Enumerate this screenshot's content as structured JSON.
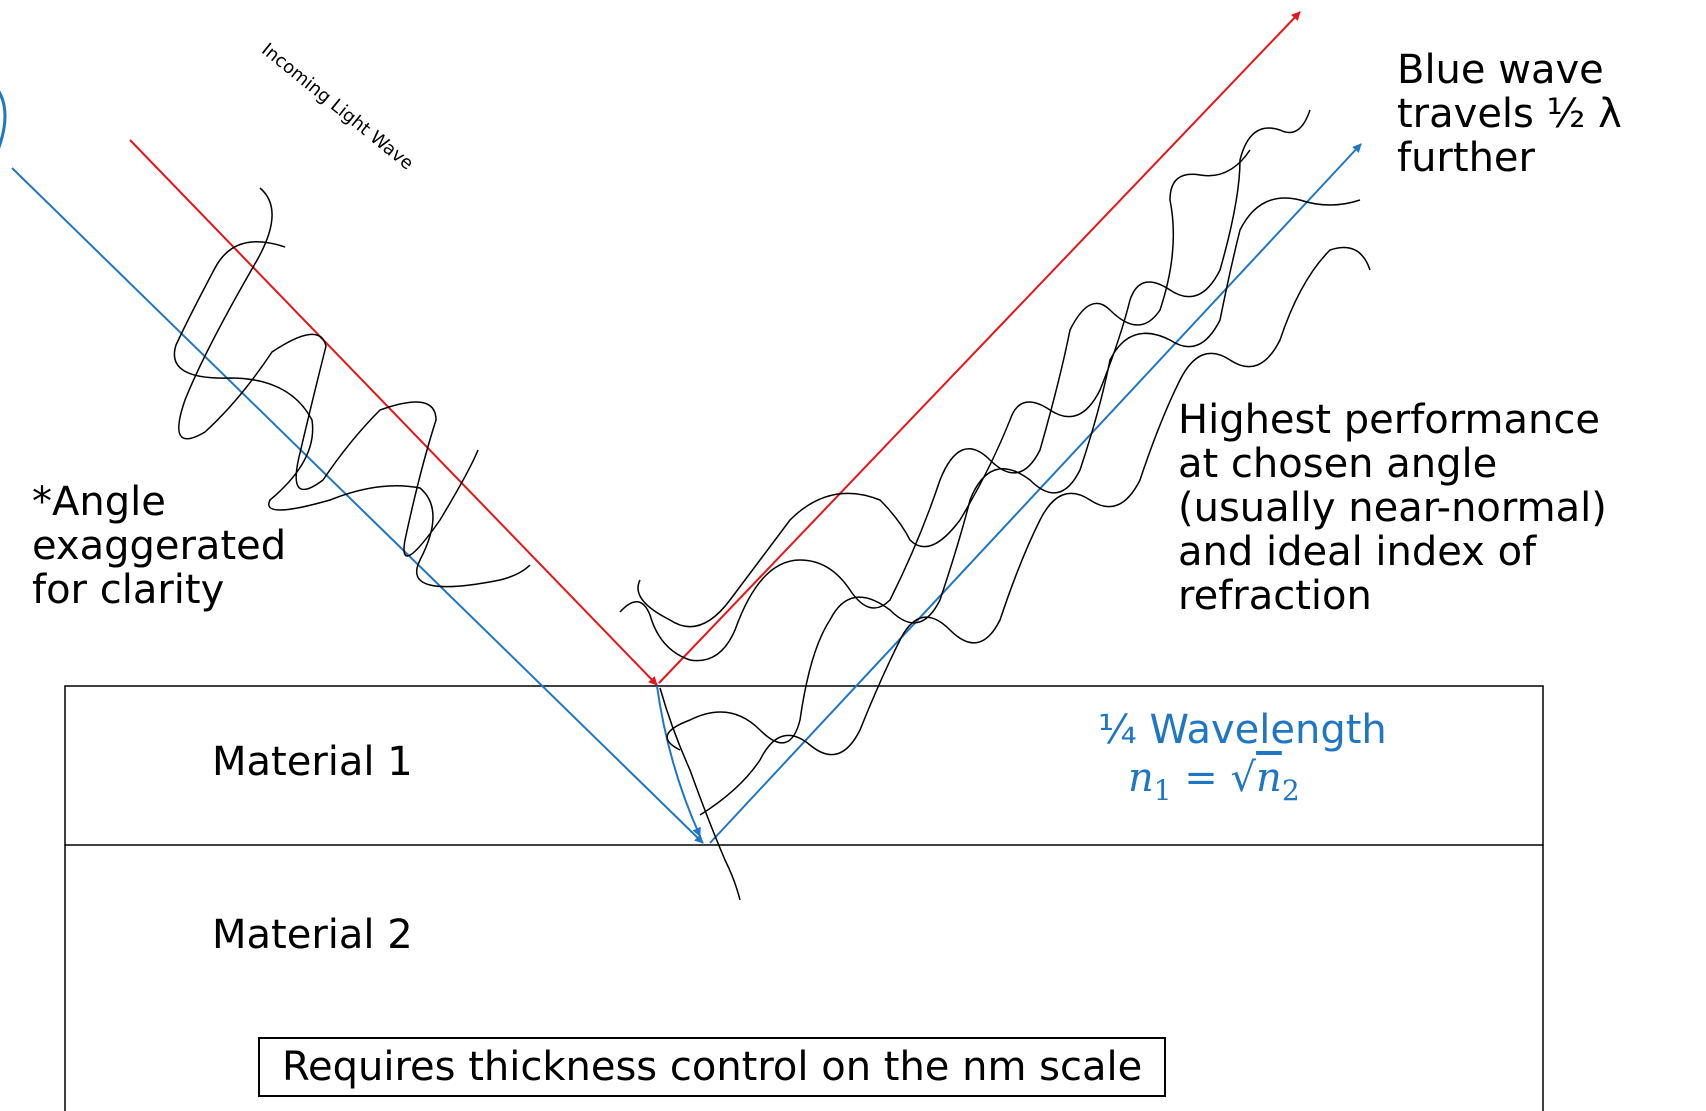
{
  "labels": {
    "incoming_wave": "Incoming Light Wave",
    "angle_note": [
      "*Angle",
      "exaggerated",
      "for clarity"
    ],
    "blue_wave_note": [
      "Blue wave",
      "travels ½ λ",
      "further"
    ],
    "performance_note": [
      "Highest performance",
      "at chosen angle",
      "(usually near-normal)",
      "and ideal index of",
      "refraction"
    ],
    "quarter_wavelength": "¼ Wavelength",
    "equation": {
      "lhs": "n",
      "lhs_sub": "1",
      "equals": " = ",
      "rhs": "n",
      "rhs_sub": "2"
    },
    "material_1": "Material 1",
    "material_2": "Material 2",
    "footer_note": "Requires thickness control on the nm scale"
  },
  "colors": {
    "red_ray": "#e8141a",
    "blue_ray": "#1f77c4",
    "wave": "#000000",
    "text": "#000000",
    "annotation_blue": "#1f77c4"
  },
  "icons": {
    "arrowhead": "filled-triangle-arrowhead"
  }
}
